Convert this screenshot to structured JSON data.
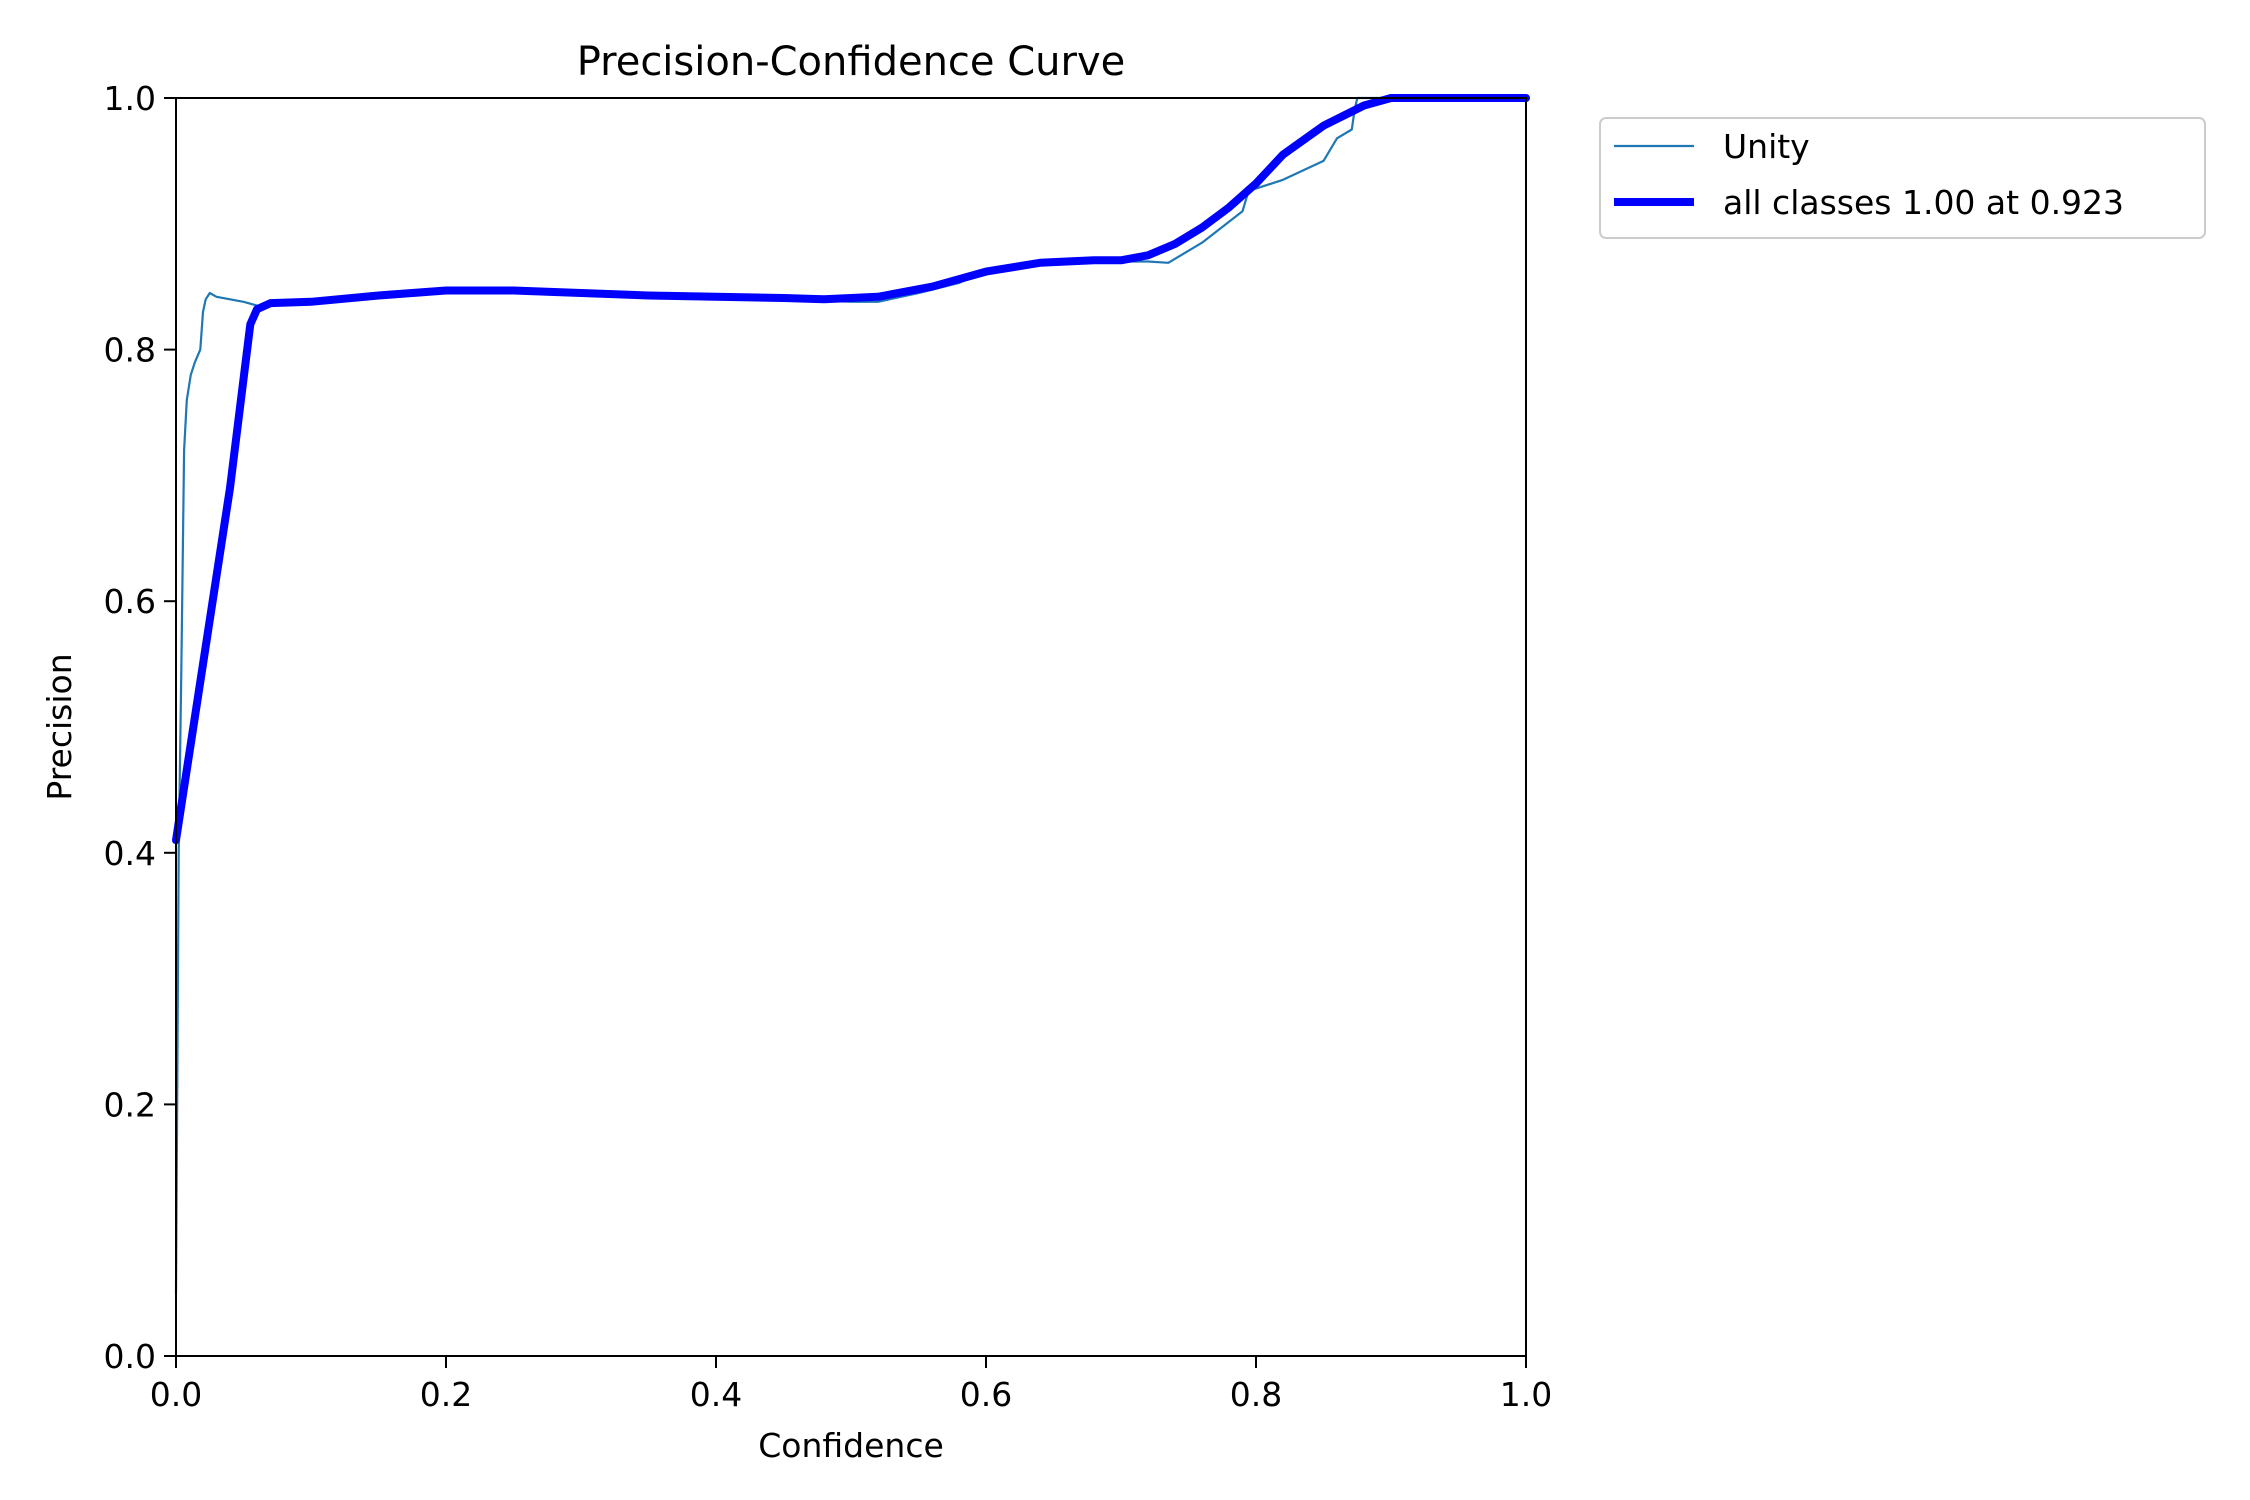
{
  "chart_data": {
    "type": "line",
    "title": "Precision-Confidence Curve",
    "xlabel": "Confidence",
    "ylabel": "Precision",
    "xlim": [
      0,
      1
    ],
    "ylim": [
      0,
      1
    ],
    "xticks": [
      "0.0",
      "0.2",
      "0.4",
      "0.6",
      "0.8",
      "1.0"
    ],
    "yticks": [
      "0.0",
      "0.2",
      "0.4",
      "0.6",
      "0.8",
      "1.0"
    ],
    "grid": false,
    "legend_position": "outside top-right",
    "series": [
      {
        "name": "Unity",
        "color": "#1f77b4",
        "style": "thin",
        "x": [
          0.0,
          0.002,
          0.004,
          0.006,
          0.008,
          0.011,
          0.014,
          0.018,
          0.02,
          0.022,
          0.025,
          0.03,
          0.04,
          0.05,
          0.06,
          0.08,
          0.1,
          0.15,
          0.2,
          0.25,
          0.3,
          0.35,
          0.4,
          0.45,
          0.5,
          0.52,
          0.55,
          0.58,
          0.6,
          0.65,
          0.7,
          0.72,
          0.735,
          0.76,
          0.79,
          0.795,
          0.8,
          0.82,
          0.85,
          0.86,
          0.871,
          0.873,
          0.875,
          0.9,
          0.95,
          1.0
        ],
        "y": [
          0.05,
          0.4,
          0.55,
          0.72,
          0.76,
          0.78,
          0.79,
          0.8,
          0.83,
          0.84,
          0.845,
          0.842,
          0.84,
          0.838,
          0.835,
          0.836,
          0.838,
          0.843,
          0.846,
          0.846,
          0.844,
          0.842,
          0.841,
          0.84,
          0.838,
          0.838,
          0.845,
          0.853,
          0.862,
          0.869,
          0.87,
          0.87,
          0.869,
          0.885,
          0.91,
          0.928,
          0.928,
          0.935,
          0.95,
          0.968,
          0.975,
          0.99,
          1.0,
          1.0,
          1.0,
          1.0
        ]
      },
      {
        "name": "all classes 1.00 at 0.923",
        "color": "#0000ff",
        "style": "thick",
        "x": [
          0.0,
          0.02,
          0.04,
          0.055,
          0.06,
          0.07,
          0.1,
          0.15,
          0.2,
          0.25,
          0.3,
          0.35,
          0.4,
          0.45,
          0.48,
          0.52,
          0.56,
          0.6,
          0.64,
          0.68,
          0.7,
          0.72,
          0.74,
          0.76,
          0.78,
          0.8,
          0.82,
          0.85,
          0.88,
          0.9,
          0.923,
          0.95,
          1.0
        ],
        "y": [
          0.41,
          0.55,
          0.69,
          0.82,
          0.832,
          0.837,
          0.838,
          0.843,
          0.847,
          0.847,
          0.845,
          0.843,
          0.842,
          0.841,
          0.84,
          0.842,
          0.85,
          0.862,
          0.869,
          0.871,
          0.871,
          0.875,
          0.884,
          0.897,
          0.913,
          0.932,
          0.955,
          0.978,
          0.994,
          1.0,
          1.0,
          1.0,
          1.0
        ]
      }
    ]
  }
}
